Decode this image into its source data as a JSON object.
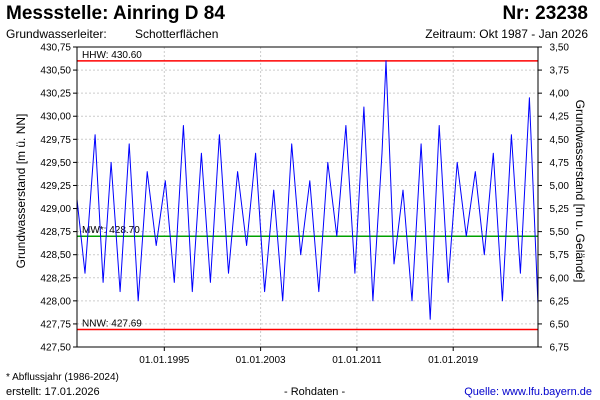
{
  "header": {
    "title": "Messstelle: Ainring D 84",
    "number": "Nr: 23238",
    "aquifer_label": "Grundwasserleiter:",
    "aquifer_value": "Schotterflächen",
    "period": "Zeitraum: Okt 1987 - Jan 2026"
  },
  "footer": {
    "footnote": "* Abflussjahr (1986-2024)",
    "created": "erstellt:  17.01.2026",
    "rawdata": "- Rohdaten -",
    "source": "Quelle:  www.lfu.bayern.de"
  },
  "colors": {
    "series": "#0000ff",
    "extreme_lines": "#ff0000",
    "mean_line": "#00a000",
    "grid": "#cccccc",
    "source_link": "#0000cc"
  },
  "chart_data": {
    "type": "line",
    "ylabel_left": "Grundwasserstand [m ü. NN]",
    "ylabel_right": "Grundwasserstand [m u. Gelände]",
    "ylim": [
      427.5,
      430.75
    ],
    "yticks_left": [
      "427,50",
      "427,75",
      "428,00",
      "428,25",
      "428,50",
      "428,75",
      "429,00",
      "429,25",
      "429,50",
      "429,75",
      "430,00",
      "430,25",
      "430,50",
      "430,75"
    ],
    "yticks_left_values": [
      427.5,
      427.75,
      428.0,
      428.25,
      428.5,
      428.75,
      429.0,
      429.25,
      429.5,
      429.75,
      430.0,
      430.25,
      430.5,
      430.75
    ],
    "yticks_right": [
      "6,75",
      "6,50",
      "6,25",
      "6,00",
      "5,75",
      "5,50",
      "5,25",
      "5,00",
      "4,75",
      "4,50",
      "4,25",
      "4,00",
      "3,75",
      "3,50"
    ],
    "xlim": [
      "1987-10-01",
      "2026-01-17"
    ],
    "xticks": [
      "01.01.1995",
      "01.01.2003",
      "01.01.2011",
      "01.01.2019"
    ],
    "xticks_values": [
      "1995-01-01",
      "2003-01-01",
      "2011-01-01",
      "2019-01-01"
    ],
    "reference_lines": [
      {
        "label": "HHW: 430.60",
        "value": 430.6
      },
      {
        "label": "MW*: 428.70",
        "value": 428.7
      },
      {
        "label": "NNW: 427.69",
        "value": 427.69
      }
    ],
    "grid": true,
    "series": [
      {
        "x": [
          "1987-10-01",
          "1988-06-01",
          "1989-04-01",
          "1989-12-01",
          "1990-08-01",
          "1991-05-01",
          "1992-02-01",
          "1992-11-01",
          "1993-08-01",
          "1994-05-01",
          "1995-02-01",
          "1995-11-01",
          "1996-08-01",
          "1997-05-01",
          "1998-02-01",
          "1998-11-01",
          "1999-08-01",
          "2000-05-01",
          "2001-02-01",
          "2001-11-01",
          "2002-08-01",
          "2003-05-01",
          "2004-02-01",
          "2004-11-01",
          "2005-08-01",
          "2006-05-01",
          "2007-02-01",
          "2007-11-01",
          "2008-08-01",
          "2009-05-01",
          "2010-02-01",
          "2010-11-01",
          "2011-08-01",
          "2012-05-01",
          "2013-02-01",
          "2013-06-01",
          "2014-02-01",
          "2014-11-01",
          "2015-08-01",
          "2016-05-01",
          "2017-02-01",
          "2017-11-01",
          "2018-08-01",
          "2019-05-01",
          "2020-02-01",
          "2020-11-01",
          "2021-08-01",
          "2022-05-01",
          "2023-02-01",
          "2023-11-01",
          "2024-08-01",
          "2025-05-01",
          "2026-01-15"
        ],
        "y": [
          429.1,
          428.3,
          429.8,
          428.2,
          429.5,
          428.1,
          429.7,
          428.0,
          429.4,
          428.6,
          429.3,
          428.2,
          429.9,
          428.1,
          429.6,
          428.2,
          429.8,
          428.3,
          429.4,
          428.6,
          429.6,
          428.1,
          429.2,
          428.0,
          429.7,
          428.5,
          429.3,
          428.1,
          429.5,
          428.7,
          429.9,
          428.3,
          430.1,
          428.0,
          429.6,
          430.6,
          428.4,
          429.2,
          428.0,
          429.7,
          427.8,
          429.9,
          428.2,
          429.5,
          428.7,
          429.4,
          428.5,
          429.6,
          428.0,
          429.8,
          428.3,
          430.2,
          427.98
        ]
      }
    ]
  }
}
